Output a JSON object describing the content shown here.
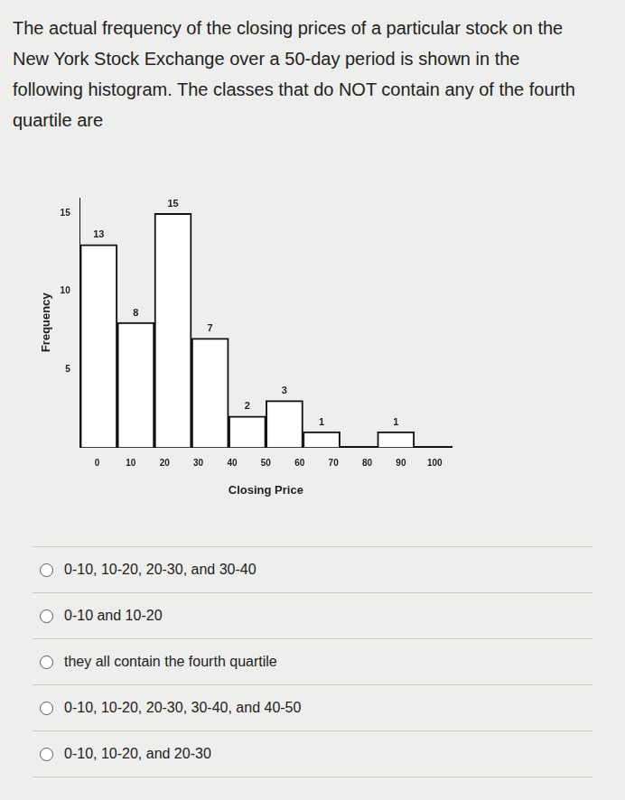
{
  "question": "The actual frequency of the closing prices of a particular stock on the New York Stock Exchange over a 50-day period is shown in the following histogram. The classes that do NOT contain any of the fourth quartile are",
  "chart_data": {
    "type": "histogram",
    "bins": [
      0,
      10,
      20,
      30,
      40,
      50,
      60,
      70,
      80,
      90,
      100
    ],
    "values": [
      13,
      8,
      15,
      7,
      2,
      3,
      1,
      0,
      1,
      0
    ],
    "color": "#ffffff",
    "x_label": "Closing Price",
    "y_label": "Frequency",
    "xlim": [
      0,
      100
    ],
    "xticks": [
      0,
      10,
      20,
      30,
      40,
      50,
      60,
      70,
      80,
      90,
      100
    ],
    "ylim": [
      0,
      16
    ],
    "yticks": [
      5,
      10,
      15
    ],
    "grid": false,
    "data_labels": true
  },
  "options": [
    "0-10, 10-20, 20-30, and 30-40",
    "0-10 and 10-20",
    "they all contain the fourth quartile",
    "0-10, 10-20, 20-30, 30-40, and 40-50",
    "0-10, 10-20, and 20-30"
  ]
}
